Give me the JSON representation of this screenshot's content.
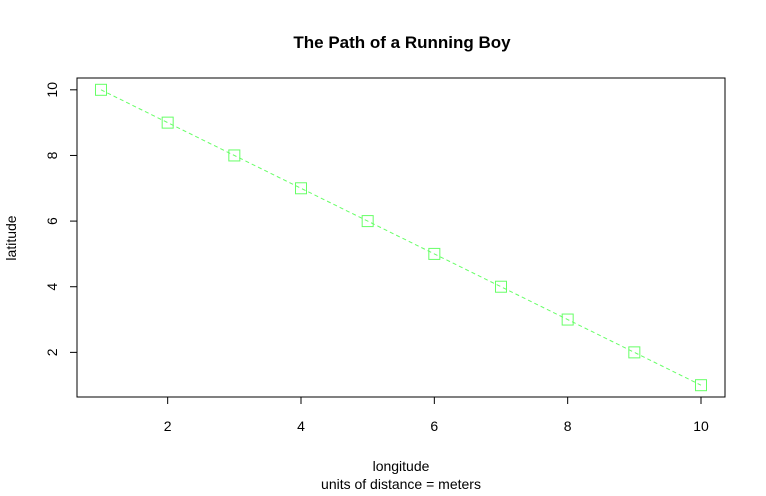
{
  "chart_data": {
    "type": "line",
    "title": "The Path of a Running Boy",
    "xlabel": "longitude",
    "xsublabel": "units of distance = meters",
    "ylabel": "latitude",
    "xlim": [
      0.64,
      10.36
    ],
    "ylim": [
      0.64,
      10.36
    ],
    "xticks": [
      2,
      4,
      6,
      8,
      10
    ],
    "yticks": [
      2,
      4,
      6,
      8,
      10
    ],
    "series": [
      {
        "x": [
          1,
          2,
          3,
          4,
          5,
          6,
          7,
          8,
          9,
          10
        ],
        "y": [
          10,
          9,
          8,
          7,
          6,
          5,
          4,
          3,
          2,
          1
        ],
        "color": "#66ff66",
        "line_style": "dashed",
        "marker": "square-open"
      }
    ]
  }
}
